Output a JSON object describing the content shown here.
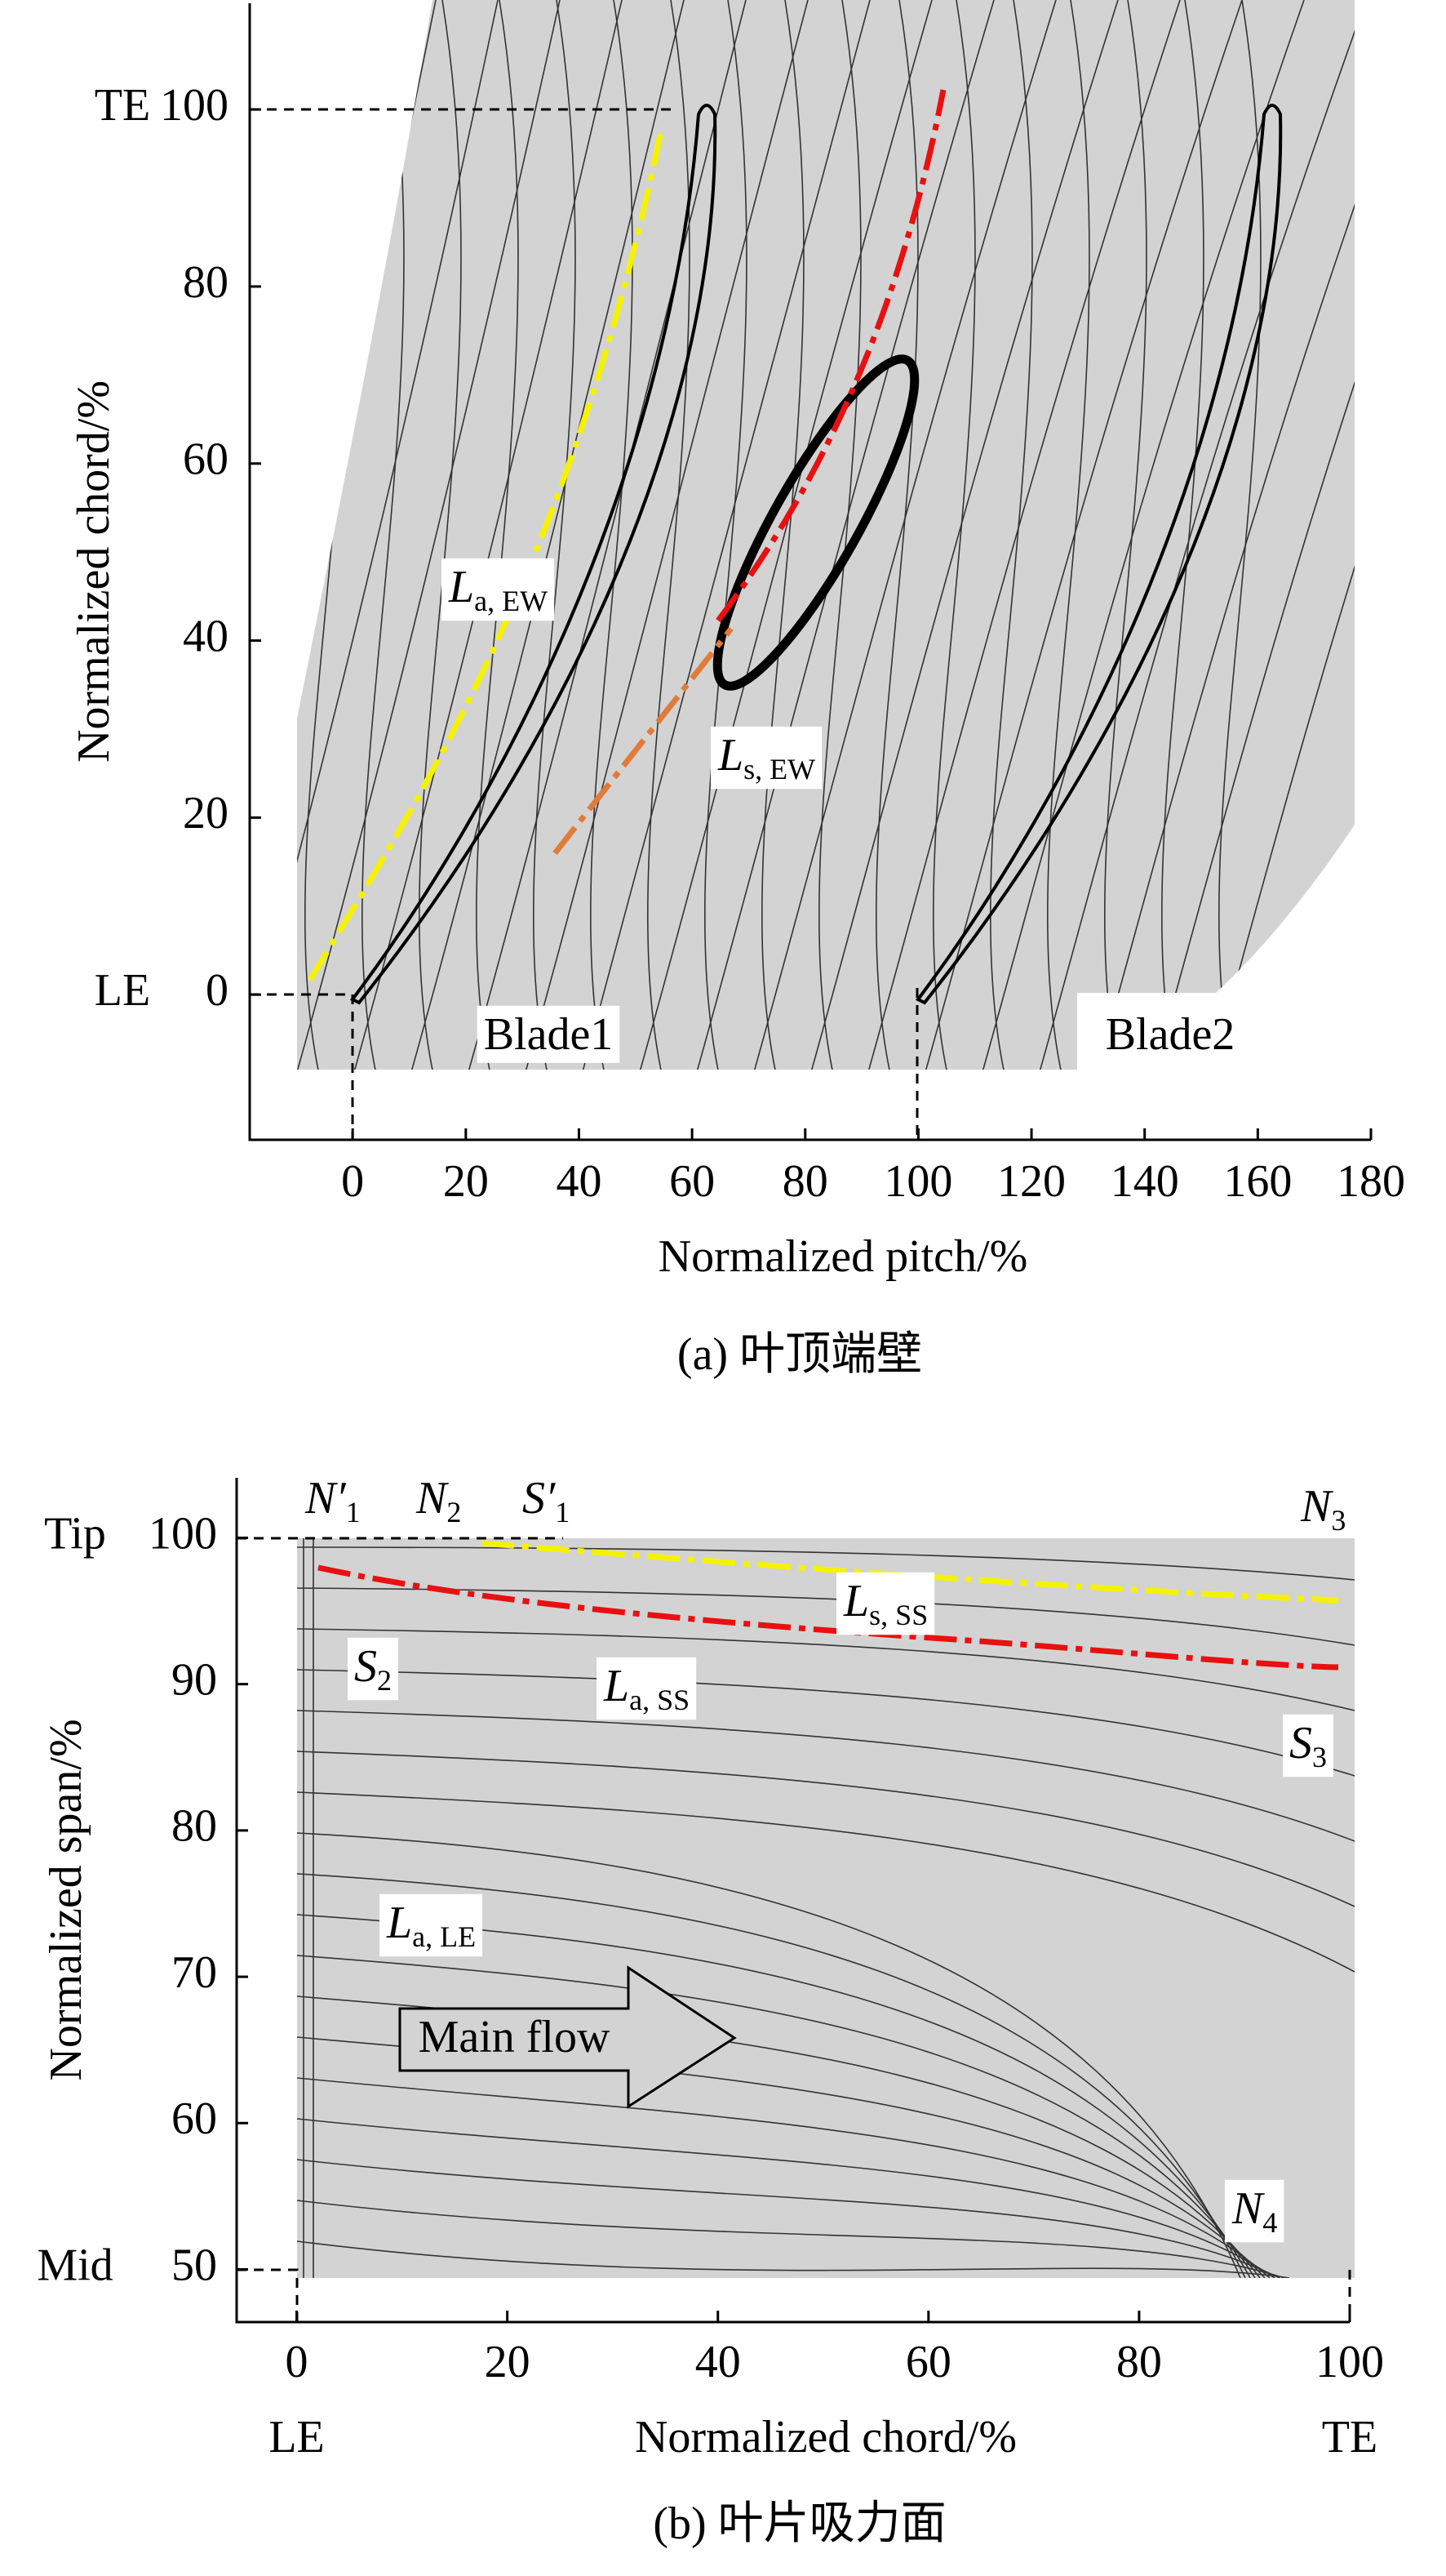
{
  "chart_data": [
    {
      "type": "streamline",
      "caption": "(a) 叶顶端壁",
      "xlabel": "Normalized pitch/%",
      "ylabel": "Normalized chord/%",
      "xlim": [
        -18.2,
        180
      ],
      "ylim": [
        -16.4,
        112
      ],
      "xticks": [
        0,
        20,
        40,
        60,
        80,
        100,
        120,
        140,
        160,
        180
      ],
      "yticks": [
        0,
        20,
        40,
        60,
        80,
        100
      ],
      "y_markers": [
        {
          "value": 100,
          "label": "TE"
        },
        {
          "value": 0,
          "label": "LE"
        }
      ],
      "labels": [
        "Blade1",
        "Blade2"
      ],
      "annotations": [
        {
          "main": "L",
          "sub": "a, EW"
        },
        {
          "main": "L",
          "sub": "s, EW"
        }
      ],
      "background_color": "#d3d3d3"
    },
    {
      "type": "streamline",
      "caption": "(b) 叶片吸力面",
      "xlabel": "Normalized chord/%",
      "ylabel": "Normalized span/%",
      "xlim": [
        -5.7,
        100
      ],
      "ylim": [
        46.4,
        104.1
      ],
      "xticks": [
        0,
        20,
        40,
        60,
        80,
        100
      ],
      "yticks": [
        50,
        60,
        70,
        80,
        90,
        100
      ],
      "x_markers": [
        {
          "value": 0,
          "label": "LE"
        },
        {
          "value": 100,
          "label": "TE"
        }
      ],
      "y_markers": [
        {
          "value": 100,
          "label": "Tip"
        },
        {
          "value": 50,
          "label": "Mid"
        }
      ],
      "labels": [
        "Main flow"
      ],
      "annotations": [
        {
          "main": "N′",
          "sub": "1"
        },
        {
          "main": "N",
          "sub": "2"
        },
        {
          "main": "S′",
          "sub": "1"
        },
        {
          "main": "N",
          "sub": "3"
        },
        {
          "main": "S",
          "sub": "2"
        },
        {
          "main": "L",
          "sub": "a, SS"
        },
        {
          "main": "L",
          "sub": "s, SS"
        },
        {
          "main": "S",
          "sub": "3"
        },
        {
          "main": "L",
          "sub": "a, LE"
        },
        {
          "main": "N",
          "sub": "4"
        }
      ],
      "background_color": "#d3d3d3"
    }
  ]
}
